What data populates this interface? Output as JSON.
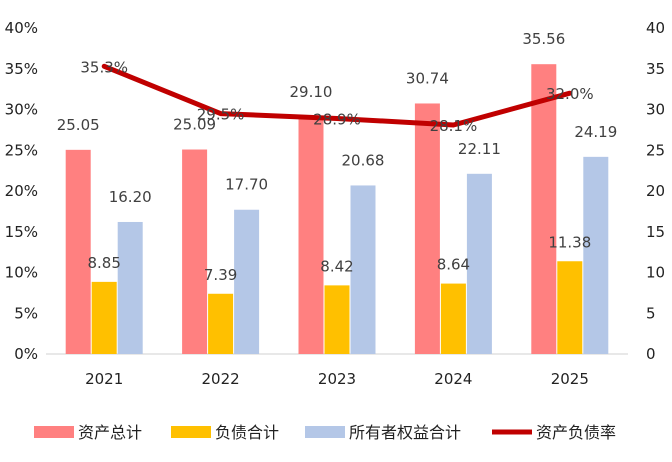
{
  "chart_data": {
    "type": "bar",
    "categories": [
      "2021",
      "2022",
      "2023",
      "2024",
      "2025"
    ],
    "series": [
      {
        "name": "资产总计",
        "kind": "bar",
        "axis": "right",
        "color": "#FF8080",
        "values": [
          25.05,
          25.09,
          29.1,
          30.74,
          35.56
        ],
        "labels": [
          "25.05",
          "25.09",
          "29.10",
          "30.74",
          "35.56"
        ]
      },
      {
        "name": "负债合计",
        "kind": "bar",
        "axis": "right",
        "color": "#FFC000",
        "values": [
          8.85,
          7.39,
          8.42,
          8.64,
          11.38
        ],
        "labels": [
          "8.85",
          "7.39",
          "8.42",
          "8.64",
          "11.38"
        ]
      },
      {
        "name": "所有者权益合计",
        "kind": "bar",
        "axis": "right",
        "color": "#B4C7E7",
        "values": [
          16.2,
          17.7,
          20.68,
          22.11,
          24.19
        ],
        "labels": [
          "16.20",
          "17.70",
          "20.68",
          "22.11",
          "24.19"
        ]
      },
      {
        "name": "资产负债率",
        "kind": "line",
        "axis": "left",
        "color": "#C00000",
        "values": [
          35.3,
          29.5,
          28.9,
          28.1,
          32.0
        ],
        "labels": [
          "35.3%",
          "29.5%",
          "28.9%",
          "28.1%",
          "32.0%"
        ]
      }
    ],
    "left_axis": {
      "min": 0,
      "max": 40,
      "step": 5,
      "ticks": [
        "0%",
        "5%",
        "10%",
        "15%",
        "20%",
        "25%",
        "30%",
        "35%",
        "40%"
      ]
    },
    "right_axis": {
      "min": 0,
      "max": 40,
      "step": 5,
      "ticks": [
        "0",
        "5",
        "10",
        "15",
        "20",
        "25",
        "30",
        "35",
        "40"
      ]
    },
    "grid": false,
    "legend": "bottom"
  }
}
